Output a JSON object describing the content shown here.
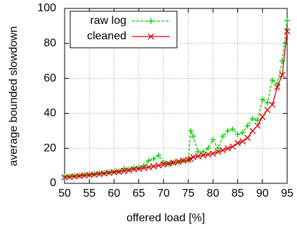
{
  "chart_data": {
    "type": "line",
    "x_label": "offered load [%]",
    "y_label": "average bounded slowdown",
    "x": [
      50,
      51,
      52,
      53,
      54,
      55,
      56,
      57,
      58,
      59,
      60,
      61,
      62,
      63,
      64,
      65,
      66,
      67,
      68,
      69,
      70,
      71,
      72,
      73,
      74,
      75,
      75.5,
      76,
      77,
      78,
      79,
      80,
      81,
      82,
      83,
      84,
      85,
      86,
      87,
      88,
      89,
      90,
      91,
      92,
      93,
      94,
      95
    ],
    "series": [
      {
        "name": "raw log",
        "color": "#00cc00",
        "marker": "plus",
        "dashed": true,
        "values": [
          4,
          4,
          4.3,
          4.5,
          5,
          5,
          5.5,
          6,
          6,
          6.5,
          7,
          7,
          8.5,
          8,
          9,
          9,
          10,
          13,
          14,
          16,
          12,
          11,
          12,
          12,
          13,
          13,
          30,
          27,
          18,
          18,
          20,
          25,
          20,
          27,
          30,
          31,
          28,
          29,
          33,
          37,
          36,
          48,
          46,
          59,
          57,
          70,
          93
        ]
      },
      {
        "name": "cleaned",
        "color": "#dd0000",
        "marker": "cross",
        "dashed": false,
        "values": [
          3.5,
          3.7,
          4,
          4.2,
          4.5,
          4.8,
          5,
          5.3,
          5.6,
          6,
          6.3,
          6.6,
          7,
          7.5,
          8,
          8.3,
          8.8,
          9.2,
          9.7,
          10.2,
          10.8,
          11.3,
          11.8,
          12.4,
          13,
          13.5,
          14,
          15,
          15.5,
          16,
          16.5,
          17,
          18,
          19,
          20,
          21,
          23,
          24,
          26,
          30,
          33,
          38,
          42,
          45,
          55,
          62,
          87
        ]
      }
    ],
    "xlim": [
      50,
      95
    ],
    "ylim": [
      0,
      100
    ],
    "xticks": [
      50,
      55,
      60,
      65,
      70,
      75,
      80,
      85,
      90,
      95
    ],
    "yticks": [
      0,
      20,
      40,
      60,
      80,
      100
    ],
    "grid": true,
    "legend": "top-left"
  }
}
